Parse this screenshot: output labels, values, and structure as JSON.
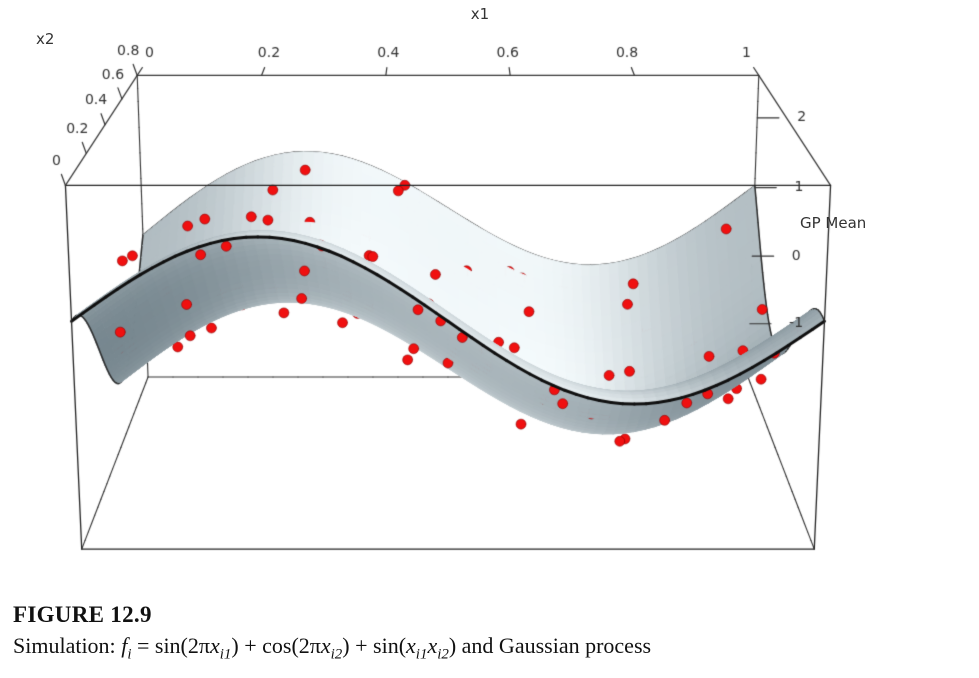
{
  "figure": {
    "label": "FIGURE 12.9",
    "caption_segments": [
      {
        "t": "Simulation: ",
        "s": "n"
      },
      {
        "t": "f",
        "s": "i"
      },
      {
        "t": "i",
        "s": "isub"
      },
      {
        "t": " = sin(2π",
        "s": "n"
      },
      {
        "t": "x",
        "s": "i"
      },
      {
        "t": "i1",
        "s": "isub"
      },
      {
        "t": ") + cos(2π",
        "s": "n"
      },
      {
        "t": "x",
        "s": "i"
      },
      {
        "t": "i2",
        "s": "isub"
      },
      {
        "t": ") + sin(",
        "s": "n"
      },
      {
        "t": "x",
        "s": "i"
      },
      {
        "t": "i1",
        "s": "isub"
      },
      {
        "t": "x",
        "s": "i"
      },
      {
        "t": "i2",
        "s": "isub"
      },
      {
        "t": ") and Gaussian process",
        "s": "n"
      }
    ]
  },
  "chart_data": {
    "type": "surface3d-scatter",
    "title": "",
    "surface_formula": "f(x1,x2) = sin(2*pi*x1) + cos(2*pi*x2) + sin(x1*x2)",
    "x1": {
      "label": "x1",
      "range": [
        0,
        1
      ],
      "ticks": [
        0,
        0.2,
        0.4,
        0.6,
        0.8,
        1
      ]
    },
    "x2": {
      "label": "x2",
      "range": [
        0,
        0.8
      ],
      "ticks": [
        0,
        0.2,
        0.4,
        0.6,
        0.8
      ]
    },
    "z": {
      "label": "GP Mean",
      "range": [
        -1.8,
        2.6
      ],
      "ticks": [
        -1,
        0,
        1,
        2
      ]
    },
    "surface_colors": {
      "dark": "#51646e",
      "light": "#f4fafc",
      "edge": "#101010"
    },
    "point_color": "#f01010",
    "points_note": "each point is [x1, x2, dz] with observed z = f(x1,x2) + dz",
    "points": [
      [
        0.02,
        0.31,
        0.12
      ],
      [
        0.05,
        0.62,
        -0.21
      ],
      [
        0.07,
        0.11,
        0.33
      ],
      [
        0.09,
        0.45,
        -0.08
      ],
      [
        0.11,
        0.72,
        0.18
      ],
      [
        0.13,
        0.22,
        -0.27
      ],
      [
        0.15,
        0.55,
        0.09
      ],
      [
        0.17,
        0.04,
        -0.15
      ],
      [
        0.19,
        0.38,
        0.24
      ],
      [
        0.21,
        0.67,
        -0.11
      ],
      [
        0.23,
        0.15,
        0.31
      ],
      [
        0.25,
        0.48,
        -0.19
      ],
      [
        0.27,
        0.76,
        0.07
      ],
      [
        0.29,
        0.27,
        -0.29
      ],
      [
        0.31,
        0.58,
        0.15
      ],
      [
        0.33,
        0.08,
        -0.06
      ],
      [
        0.35,
        0.41,
        0.22
      ],
      [
        0.37,
        0.7,
        -0.17
      ],
      [
        0.39,
        0.19,
        0.28
      ],
      [
        0.41,
        0.52,
        -0.09
      ],
      [
        0.43,
        0.78,
        0.13
      ],
      [
        0.45,
        0.3,
        -0.23
      ],
      [
        0.47,
        0.61,
        0.05
      ],
      [
        0.49,
        0.12,
        -0.14
      ],
      [
        0.51,
        0.44,
        0.26
      ],
      [
        0.53,
        0.73,
        -0.12
      ],
      [
        0.55,
        0.24,
        0.17
      ],
      [
        0.57,
        0.56,
        -0.25
      ],
      [
        0.59,
        0.06,
        0.1
      ],
      [
        0.61,
        0.39,
        -0.18
      ],
      [
        0.63,
        0.68,
        0.21
      ],
      [
        0.65,
        0.17,
        -0.07
      ],
      [
        0.67,
        0.5,
        0.14
      ],
      [
        0.69,
        0.79,
        -0.22
      ],
      [
        0.71,
        0.29,
        0.08
      ],
      [
        0.73,
        0.6,
        -0.16
      ],
      [
        0.75,
        0.1,
        0.25
      ],
      [
        0.77,
        0.43,
        -0.1
      ],
      [
        0.79,
        0.71,
        0.19
      ],
      [
        0.81,
        0.21,
        -0.28
      ],
      [
        0.83,
        0.53,
        0.11
      ],
      [
        0.85,
        0.02,
        -0.13
      ],
      [
        0.87,
        0.36,
        0.23
      ],
      [
        0.89,
        0.65,
        -0.2
      ],
      [
        0.91,
        0.14,
        0.06
      ],
      [
        0.93,
        0.47,
        -0.24
      ],
      [
        0.95,
        0.75,
        0.16
      ],
      [
        0.97,
        0.26,
        -0.05
      ],
      [
        0.99,
        0.57,
        0.2
      ],
      [
        0.04,
        0.18,
        -0.26
      ],
      [
        0.08,
        0.74,
        0.09
      ],
      [
        0.12,
        0.35,
        -0.19
      ],
      [
        0.16,
        0.63,
        0.27
      ],
      [
        0.2,
        0.09,
        -0.12
      ],
      [
        0.24,
        0.42,
        0.18
      ],
      [
        0.28,
        0.69,
        -0.08
      ],
      [
        0.32,
        0.23,
        0.3
      ],
      [
        0.36,
        0.54,
        -0.21
      ],
      [
        0.4,
        0.03,
        0.12
      ],
      [
        0.44,
        0.37,
        -0.27
      ],
      [
        0.48,
        0.66,
        0.15
      ],
      [
        0.52,
        0.16,
        -0.09
      ],
      [
        0.56,
        0.49,
        0.24
      ],
      [
        0.6,
        0.77,
        -0.14
      ],
      [
        0.64,
        0.28,
        0.07
      ],
      [
        0.68,
        0.59,
        -0.23
      ],
      [
        0.72,
        0.07,
        0.19
      ],
      [
        0.76,
        0.4,
        -0.11
      ],
      [
        0.8,
        0.73,
        0.28
      ],
      [
        0.84,
        0.2,
        -0.17
      ],
      [
        0.88,
        0.51,
        0.1
      ],
      [
        0.92,
        0.01,
        -0.25
      ],
      [
        0.96,
        0.34,
        0.21
      ],
      [
        0.03,
        0.64,
        -0.13
      ],
      [
        0.1,
        0.25,
        0.16
      ],
      [
        0.18,
        0.56,
        -0.22
      ],
      [
        0.26,
        0.05,
        0.13
      ],
      [
        0.34,
        0.46,
        -0.18
      ],
      [
        0.42,
        0.75,
        0.26
      ],
      [
        0.5,
        0.32,
        -0.07
      ],
      [
        0.58,
        0.61,
        0.11
      ],
      [
        0.66,
        0.13,
        -0.28
      ],
      [
        0.74,
        0.44,
        0.22
      ],
      [
        0.82,
        0.7,
        -0.15
      ],
      [
        0.9,
        0.24,
        0.09
      ],
      [
        0.98,
        0.55,
        -0.2
      ],
      [
        0.06,
        0.08,
        0.29
      ],
      [
        0.14,
        0.47,
        -0.1
      ],
      [
        0.22,
        0.72,
        0.17
      ],
      [
        0.3,
        0.18,
        -0.24
      ],
      [
        0.38,
        0.5,
        0.08
      ],
      [
        0.46,
        0.02,
        -0.16
      ],
      [
        0.54,
        0.41,
        0.23
      ],
      [
        0.62,
        0.76,
        -0.06
      ],
      [
        0.7,
        0.33,
        0.14
      ],
      [
        0.78,
        0.62,
        -0.26
      ],
      [
        0.86,
        0.11,
        0.2
      ],
      [
        0.94,
        0.45,
        -0.12
      ],
      [
        0.01,
        0.53,
        0.25
      ],
      [
        0.99,
        0.19,
        -0.09
      ]
    ]
  }
}
